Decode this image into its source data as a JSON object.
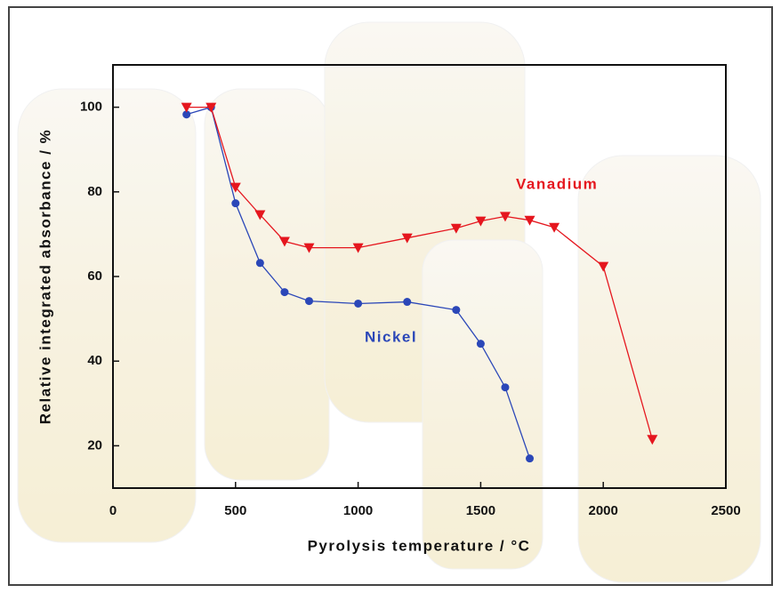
{
  "chart_data": {
    "type": "line",
    "x_label": "Pyrolysis temperature / °C",
    "y_label": "Relative integrated absorbance / %",
    "xlim": [
      0,
      2500
    ],
    "xticks": [
      0,
      500,
      1000,
      1500,
      2000,
      2500
    ],
    "ylim": [
      10,
      110
    ],
    "yticks": [
      20,
      40,
      60,
      80,
      100
    ],
    "series": [
      {
        "name": "Nickel",
        "color": "#2b47b8",
        "marker": "circle",
        "x": [
          300,
          400,
          500,
          600,
          700,
          800,
          1000,
          1200,
          1400,
          1500,
          1600,
          1700
        ],
        "values": [
          98.3,
          100,
          77.3,
          63.2,
          56.3,
          54.2,
          53.6,
          54.0,
          52.1,
          44.1,
          33.8,
          17
        ]
      },
      {
        "name": "Vanadium",
        "color": "#e5161e",
        "marker": "triangle-down",
        "x": [
          300,
          400,
          500,
          600,
          700,
          800,
          1000,
          1200,
          1400,
          1500,
          1600,
          1700,
          1800,
          2000,
          2200
        ],
        "values": [
          100,
          100,
          81.1,
          74.6,
          68.3,
          66.8,
          66.8,
          69.1,
          71.4,
          73.1,
          74.2,
          73.3,
          71.6,
          62.4,
          21.5
        ]
      }
    ]
  }
}
